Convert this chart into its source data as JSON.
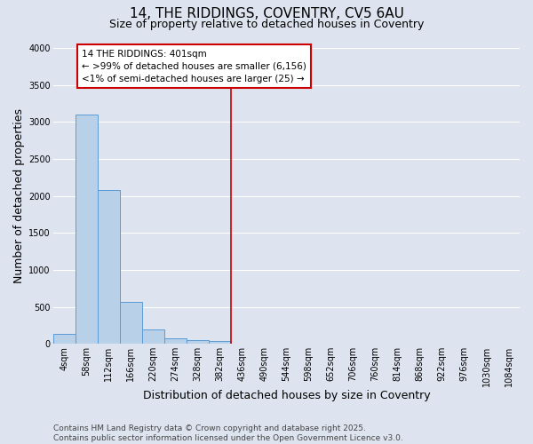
{
  "title": "14, THE RIDDINGS, COVENTRY, CV5 6AU",
  "subtitle": "Size of property relative to detached houses in Coventry",
  "xlabel": "Distribution of detached houses by size in Coventry",
  "ylabel": "Number of detached properties",
  "bin_labels": [
    "4sqm",
    "58sqm",
    "112sqm",
    "166sqm",
    "220sqm",
    "274sqm",
    "328sqm",
    "382sqm",
    "436sqm",
    "490sqm",
    "544sqm",
    "598sqm",
    "652sqm",
    "706sqm",
    "760sqm",
    "814sqm",
    "868sqm",
    "922sqm",
    "976sqm",
    "1030sqm",
    "1084sqm"
  ],
  "bar_heights": [
    130,
    3100,
    2080,
    570,
    200,
    80,
    55,
    40,
    0,
    0,
    0,
    0,
    0,
    0,
    0,
    0,
    0,
    0,
    0,
    0,
    0
  ],
  "bar_color": "#b8d0e8",
  "bar_edge_color": "#5b9bd5",
  "background_color": "#dde4ef",
  "grid_color": "#ffffff",
  "annotation_text": "14 THE RIDDINGS: 401sqm\n← >99% of detached houses are smaller (6,156)\n<1% of semi-detached houses are larger (25) →",
  "vline_x_index": 7.5,
  "vline_color": "#cc0000",
  "annotation_box_color": "#cc0000",
  "ylim": [
    0,
    4000
  ],
  "yticks": [
    0,
    500,
    1000,
    1500,
    2000,
    2500,
    3000,
    3500,
    4000
  ],
  "footer_line1": "Contains HM Land Registry data © Crown copyright and database right 2025.",
  "footer_line2": "Contains public sector information licensed under the Open Government Licence v3.0.",
  "title_fontsize": 11,
  "subtitle_fontsize": 9,
  "axis_label_fontsize": 9,
  "tick_fontsize": 7,
  "annotation_fontsize": 7.5,
  "footer_fontsize": 6.5
}
